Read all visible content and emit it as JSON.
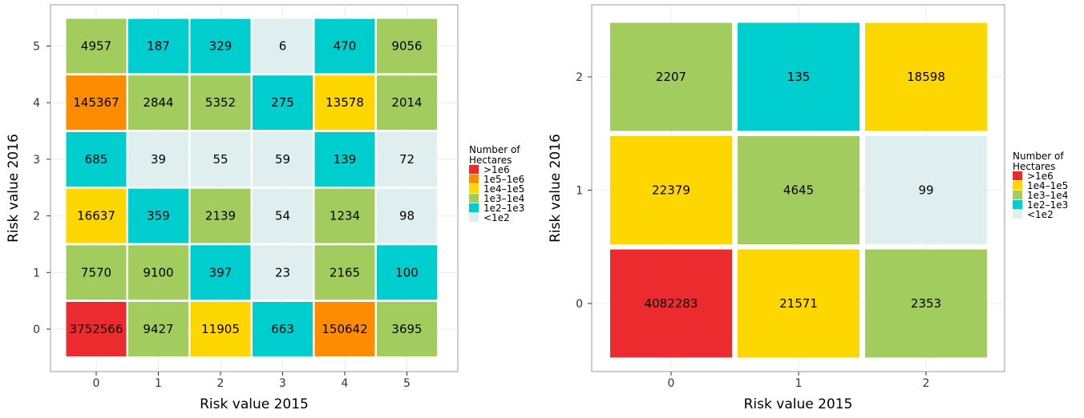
{
  "chart_data": [
    {
      "type": "heatmap",
      "xlabel": "Risk value 2015",
      "ylabel": "Risk value 2016",
      "x_categories": [
        "0",
        "1",
        "2",
        "3",
        "4",
        "5"
      ],
      "y_categories": [
        "0",
        "1",
        "2",
        "3",
        "4",
        "5"
      ],
      "values": [
        [
          3752566,
          9427,
          11905,
          663,
          150642,
          3695
        ],
        [
          7570,
          9100,
          397,
          23,
          2165,
          100
        ],
        [
          16637,
          359,
          2139,
          54,
          1234,
          98
        ],
        [
          685,
          39,
          55,
          59,
          139,
          72
        ],
        [
          145367,
          2844,
          5352,
          275,
          13578,
          2014
        ],
        [
          4957,
          187,
          329,
          6,
          470,
          9056
        ]
      ],
      "legend": {
        "title": [
          "Number of",
          "Hectares"
        ],
        "items": [
          {
            "label": ">1e6",
            "color": "#ec2b2f"
          },
          {
            "label": "1e5–1e6",
            "color": "#fd8c00"
          },
          {
            "label": "1e4–1e5",
            "color": "#fed600"
          },
          {
            "label": "1e3–1e4",
            "color": "#a2cc5d"
          },
          {
            "label": "1e2–1e3",
            "color": "#00cdcd"
          },
          {
            "label": "<1e2",
            "color": "#dfeeee"
          }
        ]
      }
    },
    {
      "type": "heatmap",
      "xlabel": "Risk value 2015",
      "ylabel": "Risk value 2016",
      "x_categories": [
        "0",
        "1",
        "2"
      ],
      "y_categories": [
        "0",
        "1",
        "2"
      ],
      "values": [
        [
          4082283,
          21571,
          2353
        ],
        [
          22379,
          4645,
          99
        ],
        [
          2207,
          135,
          18598
        ]
      ],
      "legend": {
        "title": [
          "Number of",
          "Hectares"
        ],
        "items": [
          {
            "label": ">1e6",
            "color": "#ec2b2f"
          },
          {
            "label": "1e4–1e5",
            "color": "#fed600"
          },
          {
            "label": "1e3–1e4",
            "color": "#a2cc5d"
          },
          {
            "label": "1e2–1e3",
            "color": "#00cdcd"
          },
          {
            "label": "<1e2",
            "color": "#dfeeee"
          }
        ]
      }
    }
  ]
}
